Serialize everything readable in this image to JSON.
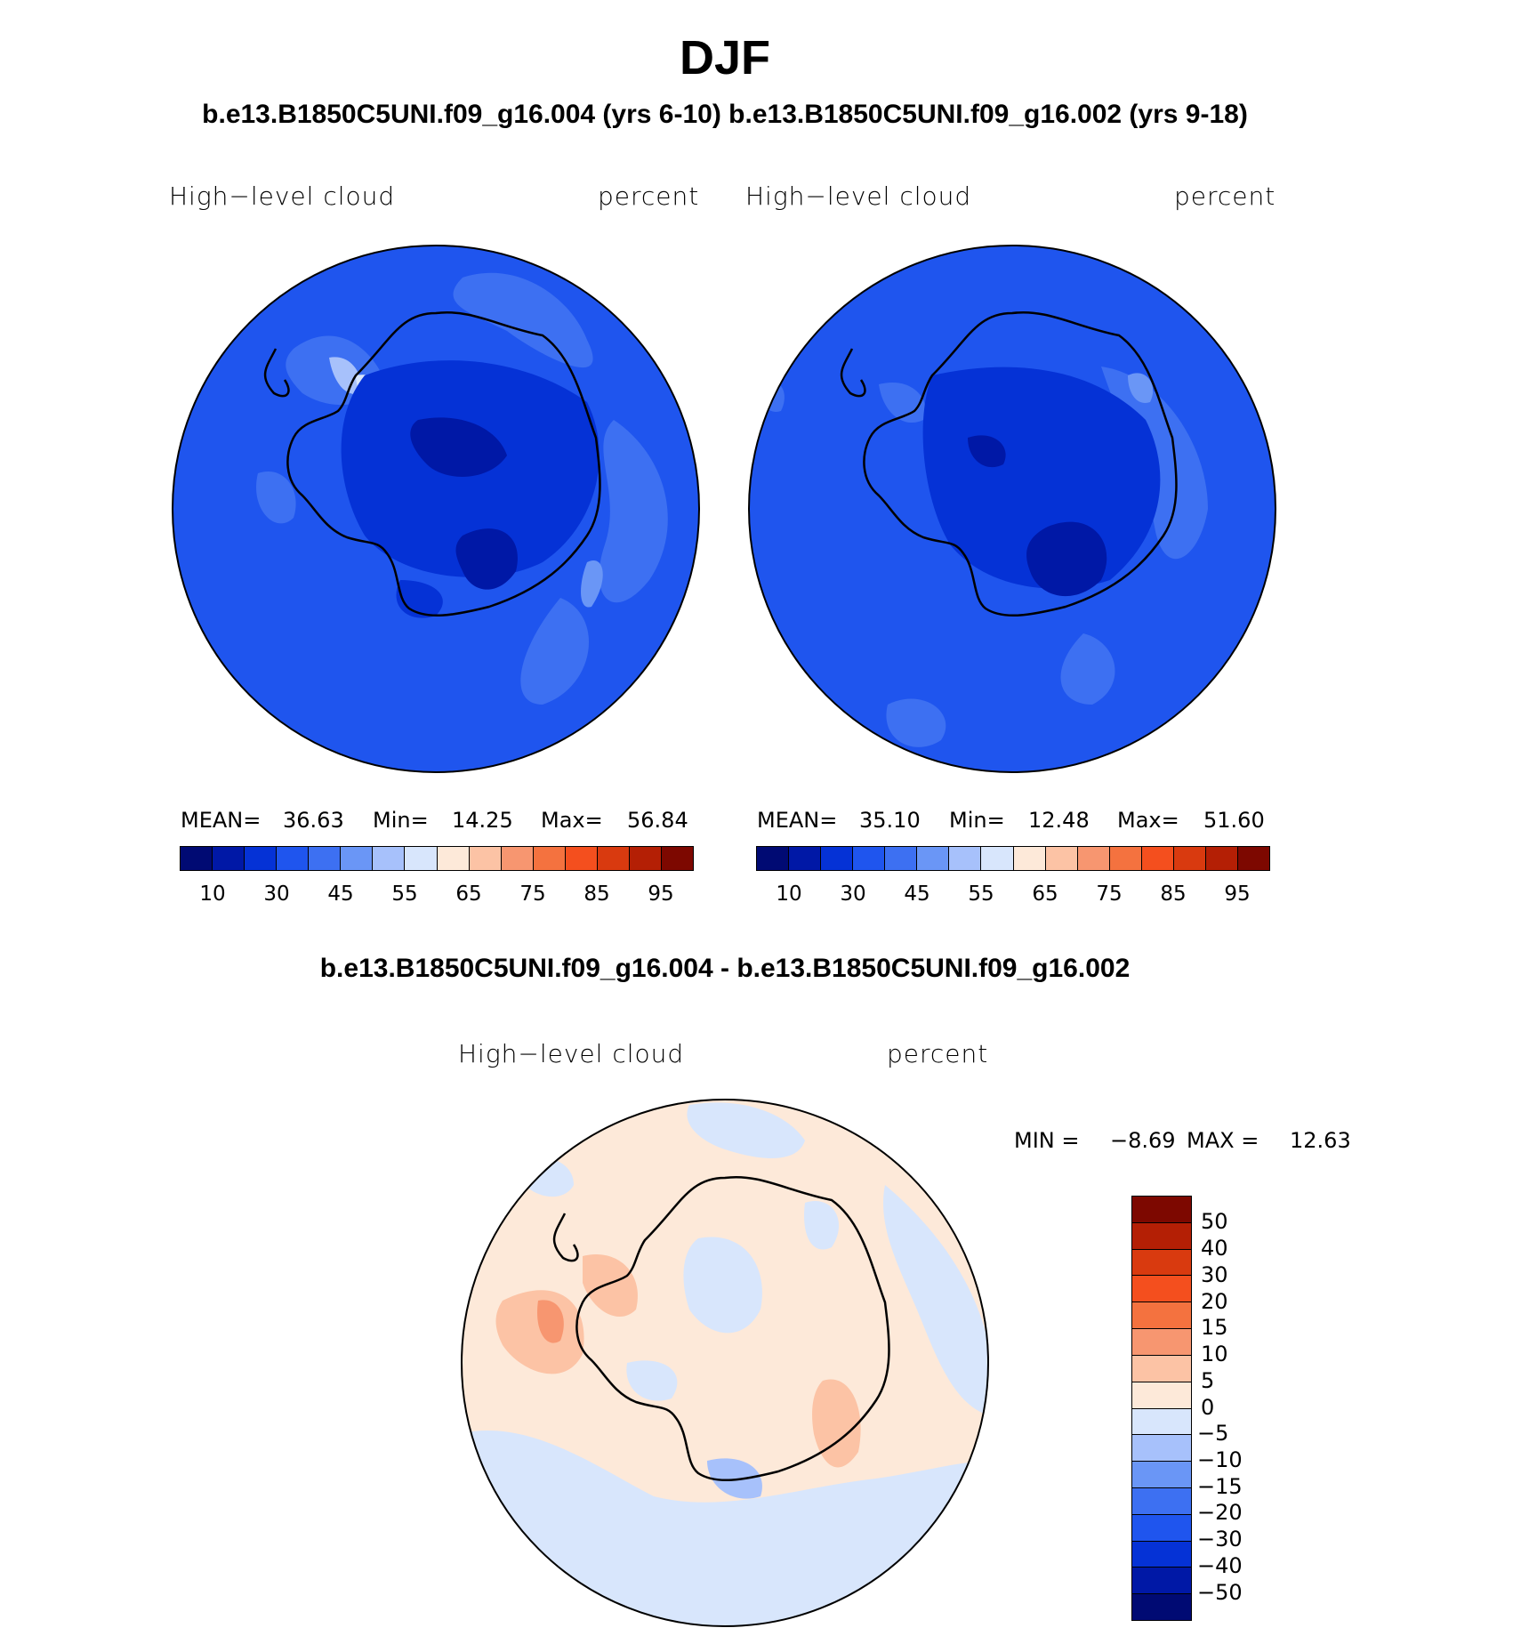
{
  "figure": {
    "title": "DJF",
    "subtitle": "b.e13.B1850C5UNI.f09_g16.004 (yrs 6-10)  b.e13.B1850C5UNI.f09_g16.002 (yrs 9-18)",
    "diff_title": "b.e13.B1850C5UNI.f09_g16.004 - b.e13.B1850C5UNI.f09_g16.002"
  },
  "panels": [
    {
      "variable": "High−level  cloud",
      "units": "percent",
      "mean_label": "MEAN=",
      "mean": "36.63",
      "min_label": "Min=",
      "min": "14.25",
      "max_label": "Max=",
      "max": "56.84"
    },
    {
      "variable": "High−level  cloud",
      "units": "percent",
      "mean_label": "MEAN=",
      "mean": "35.10",
      "min_label": "Min=",
      "min": "12.48",
      "max_label": "Max=",
      "max": "51.60"
    }
  ],
  "diff_panel": {
    "variable": "High−level  cloud",
    "units": "percent",
    "min_label": "MIN =",
    "min": "−8.69",
    "max_label": "MAX =",
    "max": "12.63"
  },
  "colorbar_abs": {
    "colors": [
      "#000a73",
      "#0018a6",
      "#0532d6",
      "#1f55ee",
      "#3d70f2",
      "#6a96f6",
      "#a7c1fb",
      "#d8e6fc",
      "#fde9d9",
      "#fcc3a5",
      "#f79670",
      "#f4723f",
      "#f44f1e",
      "#d93a0f",
      "#b41f05",
      "#7d0800"
    ],
    "ticks": [
      "10",
      "30",
      "45",
      "55",
      "65",
      "75",
      "85",
      "95"
    ]
  },
  "colorbar_diff": {
    "colors": [
      "#7d0800",
      "#b41f05",
      "#d93a0f",
      "#f44f1e",
      "#f4723f",
      "#f79670",
      "#fcc3a5",
      "#fde9d9",
      "#d8e6fc",
      "#a7c1fb",
      "#6a96f6",
      "#3d70f2",
      "#1f55ee",
      "#0532d6",
      "#0018a6",
      "#000a73"
    ],
    "ticks": [
      "50",
      "40",
      "30",
      "20",
      "15",
      "10",
      "5",
      "0",
      "−5",
      "−10",
      "−15",
      "−20",
      "−30",
      "−40",
      "−50"
    ]
  }
}
